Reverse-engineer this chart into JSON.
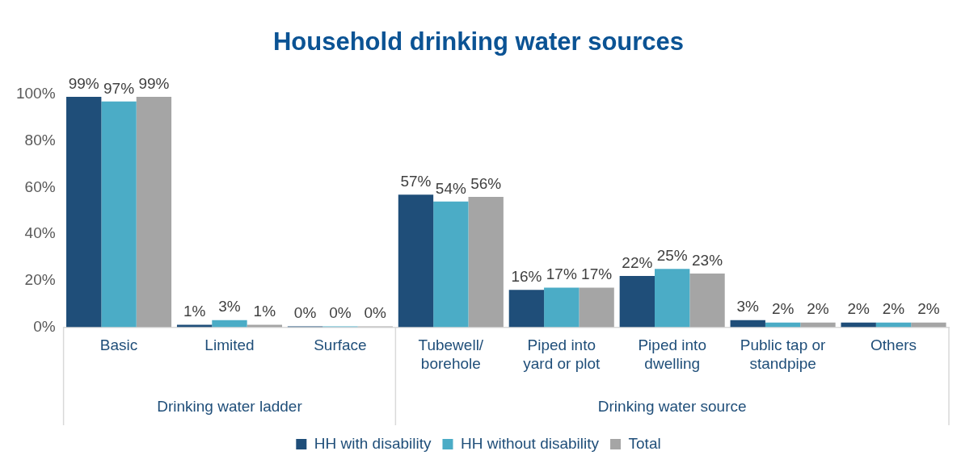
{
  "chart_data": {
    "type": "bar",
    "title": "Household drinking water sources",
    "categories": [
      "Basic",
      "Limited",
      "Surface",
      "Tubewell/ borehole",
      "Piped into yard or plot",
      "Piped into dwelling",
      "Public tap or standpipe",
      "Others"
    ],
    "series": [
      {
        "name": "HH with disability",
        "color": "#1f4e79",
        "values": [
          99,
          1,
          0,
          57,
          16,
          22,
          3,
          2
        ],
        "value_labels": [
          "99%",
          "1%",
          "0%",
          "57%",
          "16%",
          "22%",
          "3%",
          "2%"
        ]
      },
      {
        "name": "HH without disability",
        "color": "#4bacc6",
        "values": [
          97,
          3,
          0,
          54,
          17,
          25,
          2,
          2
        ],
        "value_labels": [
          "97%",
          "3%",
          "0%",
          "54%",
          "17%",
          "25%",
          "2%",
          "2%"
        ]
      },
      {
        "name": "Total",
        "color": "#a5a5a5",
        "values": [
          99,
          1,
          0,
          56,
          17,
          23,
          2,
          2
        ],
        "value_labels": [
          "99%",
          "1%",
          "0%",
          "56%",
          "17%",
          "23%",
          "2%",
          "2%"
        ]
      }
    ],
    "ylim": [
      0,
      100
    ],
    "yticks": [
      {
        "value": 0,
        "label": "0%"
      },
      {
        "value": 20,
        "label": "20%"
      },
      {
        "value": 40,
        "label": "40%"
      },
      {
        "value": 60,
        "label": "60%"
      },
      {
        "value": 80,
        "label": "80%"
      },
      {
        "value": 100,
        "label": "100%"
      }
    ],
    "annotations": [
      "Drinking water ladder",
      "Drinking water source"
    ],
    "grid": false,
    "legend": "bottom"
  }
}
